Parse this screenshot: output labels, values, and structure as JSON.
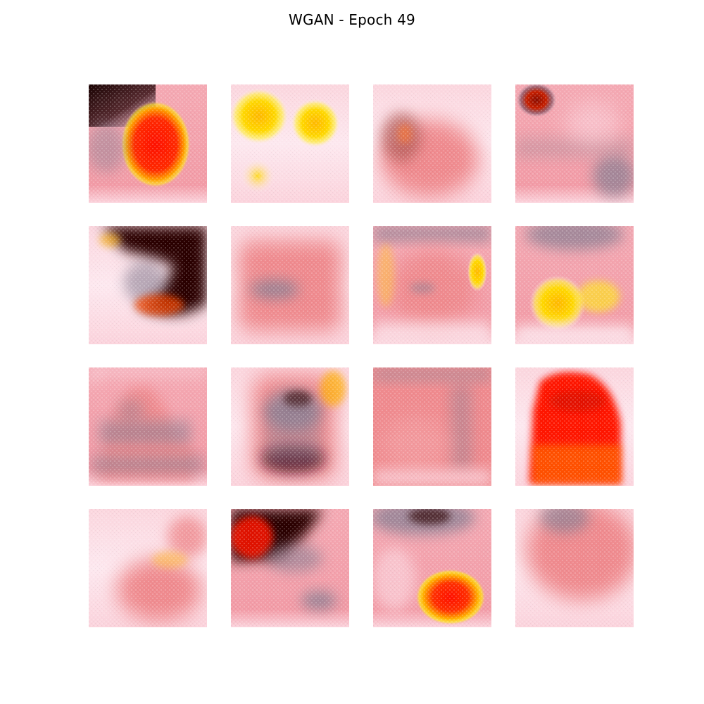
{
  "figure": {
    "title": "WGAN - Epoch 49"
  },
  "palette": {
    "background": "#ffffff",
    "base_pink": "#f2a3ad",
    "salmon": "#ef8a8e",
    "light_pink": "#fbd3dc",
    "pale_pink": "#fde8ef",
    "gray_purple": "#8b7f93",
    "dark_maroon": "#2a0606",
    "red": "#ff1600",
    "orange": "#ff6a00",
    "yellow": "#ffe81a"
  },
  "grid": {
    "rows": 4,
    "cols": 4
  },
  "samples": [
    {
      "row": 0,
      "col": 0,
      "description_name": "sample-r1-c1"
    },
    {
      "row": 0,
      "col": 1,
      "description_name": "sample-r1-c2"
    },
    {
      "row": 0,
      "col": 2,
      "description_name": "sample-r1-c3"
    },
    {
      "row": 0,
      "col": 3,
      "description_name": "sample-r1-c4"
    },
    {
      "row": 1,
      "col": 0,
      "description_name": "sample-r2-c1"
    },
    {
      "row": 1,
      "col": 1,
      "description_name": "sample-r2-c2"
    },
    {
      "row": 1,
      "col": 2,
      "description_name": "sample-r2-c3"
    },
    {
      "row": 1,
      "col": 3,
      "description_name": "sample-r2-c4"
    },
    {
      "row": 2,
      "col": 0,
      "description_name": "sample-r3-c1"
    },
    {
      "row": 2,
      "col": 1,
      "description_name": "sample-r3-c2"
    },
    {
      "row": 2,
      "col": 2,
      "description_name": "sample-r3-c3"
    },
    {
      "row": 2,
      "col": 3,
      "description_name": "sample-r3-c4"
    },
    {
      "row": 3,
      "col": 0,
      "description_name": "sample-r4-c1"
    },
    {
      "row": 3,
      "col": 1,
      "description_name": "sample-r4-c2"
    },
    {
      "row": 3,
      "col": 2,
      "description_name": "sample-r4-c3"
    },
    {
      "row": 3,
      "col": 3,
      "description_name": "sample-r4-c4"
    }
  ]
}
